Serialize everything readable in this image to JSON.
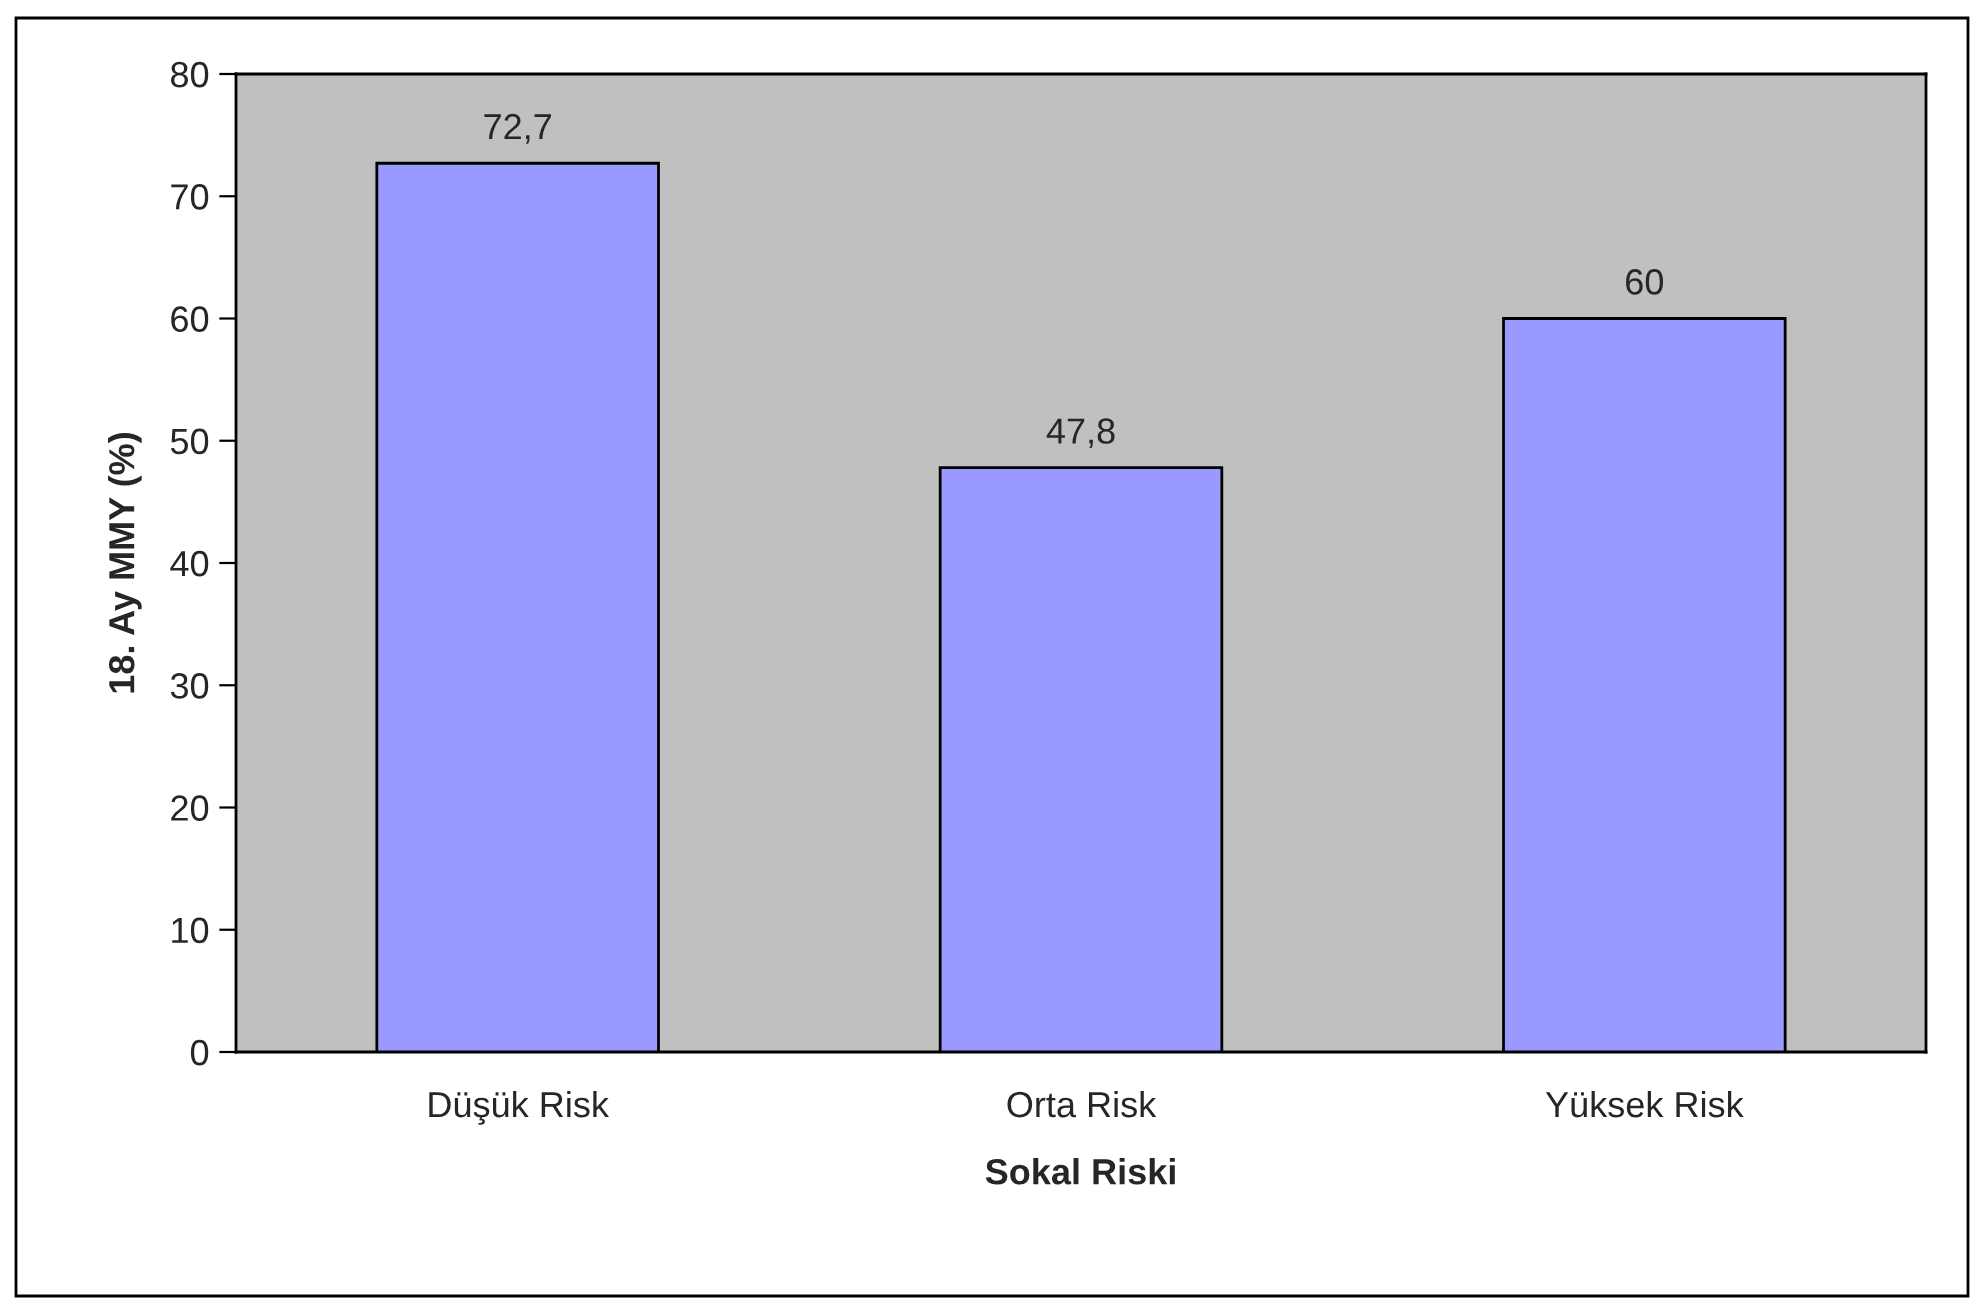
{
  "chart_data": {
    "type": "bar",
    "xlabel": "Sokal Riski",
    "ylabel": "18. Ay MMY (%)",
    "categories": [
      "Düşük Risk",
      "Orta Risk",
      "Yüksek Risk"
    ],
    "values": [
      72.7,
      47.8,
      60
    ],
    "value_labels": [
      "72,7",
      "47,8",
      "60"
    ],
    "color": "#9999ff",
    "ylim": [
      0,
      80
    ],
    "yticks": [
      0,
      10,
      20,
      30,
      40,
      50,
      60,
      70,
      80
    ],
    "grid": false,
    "legend": false
  }
}
